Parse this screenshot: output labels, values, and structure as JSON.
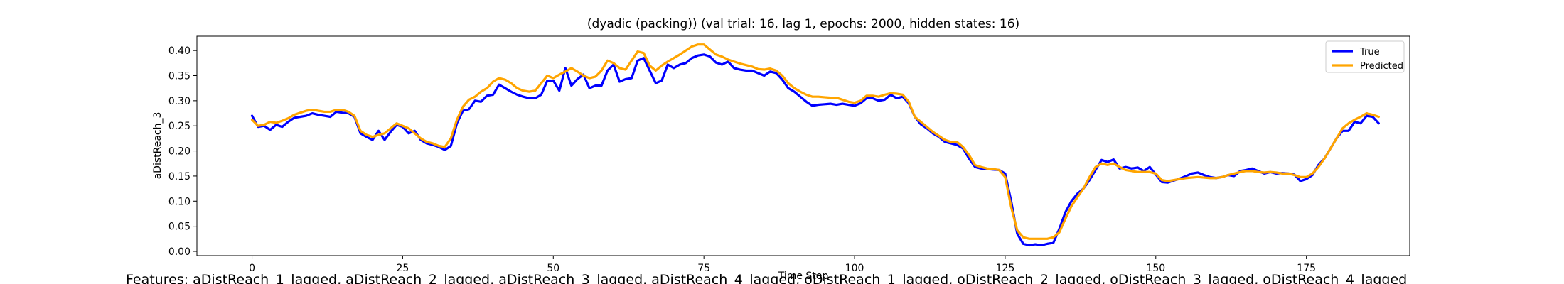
{
  "chart_data": {
    "type": "line",
    "title": "(dyadic (packing)) (val trial: 16, lag 1, epochs: 2000, hidden states: 16)",
    "xlabel": "Time Step",
    "ylabel": "aDistReach_3",
    "features_caption": "Features: aDistReach_1_lagged, aDistReach_2_lagged, aDistReach_3_lagged, aDistReach_4_lagged, oDistReach_1_lagged, oDistReach_2_lagged, oDistReach_3_lagged, oDistReach_4_lagged",
    "xlim": [
      -9.15,
      192.15
    ],
    "ylim": [
      -0.0085,
      0.4285
    ],
    "xticks": [
      0,
      25,
      50,
      75,
      100,
      125,
      150,
      175
    ],
    "yticks": [
      0.0,
      0.05,
      0.1,
      0.15,
      0.2,
      0.25,
      0.3,
      0.35,
      0.4
    ],
    "ytick_labels": [
      "0.00",
      "0.05",
      "0.10",
      "0.15",
      "0.20",
      "0.25",
      "0.30",
      "0.35",
      "0.40"
    ],
    "grid": false,
    "legend_position": "top-right",
    "series": [
      {
        "name": "True",
        "color": "#0000ff",
        "values": [
          0.27,
          0.248,
          0.25,
          0.242,
          0.252,
          0.248,
          0.258,
          0.266,
          0.268,
          0.27,
          0.275,
          0.272,
          0.27,
          0.268,
          0.278,
          0.276,
          0.275,
          0.268,
          0.235,
          0.228,
          0.222,
          0.24,
          0.222,
          0.238,
          0.252,
          0.248,
          0.235,
          0.24,
          0.222,
          0.215,
          0.212,
          0.208,
          0.202,
          0.21,
          0.255,
          0.28,
          0.283,
          0.3,
          0.298,
          0.31,
          0.312,
          0.332,
          0.325,
          0.318,
          0.312,
          0.308,
          0.305,
          0.305,
          0.312,
          0.34,
          0.34,
          0.32,
          0.365,
          0.33,
          0.343,
          0.352,
          0.325,
          0.33,
          0.33,
          0.36,
          0.372,
          0.338,
          0.343,
          0.345,
          0.38,
          0.385,
          0.36,
          0.335,
          0.34,
          0.372,
          0.365,
          0.372,
          0.375,
          0.385,
          0.39,
          0.392,
          0.388,
          0.376,
          0.372,
          0.378,
          0.365,
          0.362,
          0.36,
          0.36,
          0.355,
          0.35,
          0.358,
          0.355,
          0.342,
          0.325,
          0.318,
          0.308,
          0.298,
          0.29,
          0.292,
          0.293,
          0.294,
          0.292,
          0.294,
          0.292,
          0.29,
          0.295,
          0.305,
          0.305,
          0.3,
          0.302,
          0.312,
          0.305,
          0.308,
          0.295,
          0.268,
          0.253,
          0.245,
          0.235,
          0.228,
          0.218,
          0.215,
          0.212,
          0.205,
          0.185,
          0.168,
          0.165,
          0.164,
          0.163,
          0.162,
          0.155,
          0.1,
          0.035,
          0.015,
          0.012,
          0.014,
          0.012,
          0.015,
          0.017,
          0.045,
          0.078,
          0.1,
          0.115,
          0.125,
          0.142,
          0.162,
          0.182,
          0.178,
          0.183,
          0.165,
          0.168,
          0.165,
          0.167,
          0.16,
          0.168,
          0.153,
          0.138,
          0.137,
          0.141,
          0.145,
          0.15,
          0.155,
          0.157,
          0.152,
          0.148,
          0.146,
          0.148,
          0.152,
          0.15,
          0.16,
          0.162,
          0.165,
          0.16,
          0.155,
          0.158,
          0.155,
          0.156,
          0.155,
          0.153,
          0.14,
          0.144,
          0.152,
          0.172,
          0.185,
          0.205,
          0.225,
          0.24,
          0.24,
          0.258,
          0.255,
          0.27,
          0.268,
          0.255
        ]
      },
      {
        "name": "Predicted",
        "color": "#ffa500",
        "values": [
          0.262,
          0.25,
          0.252,
          0.258,
          0.256,
          0.26,
          0.265,
          0.272,
          0.276,
          0.28,
          0.282,
          0.28,
          0.278,
          0.278,
          0.282,
          0.282,
          0.278,
          0.27,
          0.24,
          0.232,
          0.228,
          0.232,
          0.235,
          0.245,
          0.255,
          0.25,
          0.245,
          0.235,
          0.225,
          0.218,
          0.215,
          0.21,
          0.208,
          0.225,
          0.262,
          0.288,
          0.302,
          0.308,
          0.318,
          0.325,
          0.338,
          0.345,
          0.342,
          0.335,
          0.325,
          0.32,
          0.318,
          0.32,
          0.335,
          0.35,
          0.345,
          0.352,
          0.358,
          0.365,
          0.358,
          0.35,
          0.345,
          0.348,
          0.36,
          0.38,
          0.375,
          0.365,
          0.362,
          0.38,
          0.398,
          0.395,
          0.37,
          0.36,
          0.37,
          0.378,
          0.385,
          0.392,
          0.4,
          0.408,
          0.412,
          0.412,
          0.402,
          0.392,
          0.388,
          0.382,
          0.378,
          0.374,
          0.371,
          0.368,
          0.363,
          0.362,
          0.364,
          0.36,
          0.35,
          0.335,
          0.325,
          0.318,
          0.312,
          0.308,
          0.308,
          0.307,
          0.306,
          0.306,
          0.302,
          0.298,
          0.296,
          0.3,
          0.31,
          0.31,
          0.308,
          0.312,
          0.315,
          0.314,
          0.312,
          0.298,
          0.268,
          0.258,
          0.248,
          0.238,
          0.23,
          0.222,
          0.218,
          0.218,
          0.208,
          0.192,
          0.172,
          0.168,
          0.165,
          0.164,
          0.162,
          0.148,
          0.088,
          0.042,
          0.028,
          0.025,
          0.025,
          0.025,
          0.025,
          0.028,
          0.038,
          0.065,
          0.09,
          0.108,
          0.125,
          0.148,
          0.168,
          0.175,
          0.172,
          0.175,
          0.168,
          0.162,
          0.16,
          0.158,
          0.158,
          0.158,
          0.155,
          0.142,
          0.14,
          0.142,
          0.144,
          0.146,
          0.147,
          0.148,
          0.147,
          0.146,
          0.146,
          0.148,
          0.152,
          0.155,
          0.158,
          0.16,
          0.16,
          0.158,
          0.157,
          0.158,
          0.157,
          0.155,
          0.155,
          0.152,
          0.148,
          0.148,
          0.155,
          0.168,
          0.185,
          0.205,
          0.225,
          0.245,
          0.255,
          0.262,
          0.268,
          0.275,
          0.272,
          0.268
        ]
      }
    ]
  }
}
